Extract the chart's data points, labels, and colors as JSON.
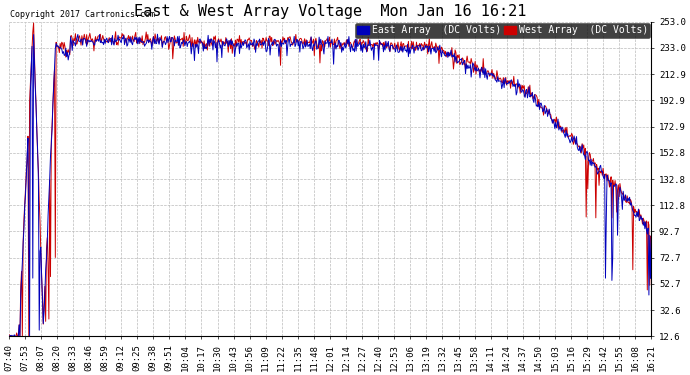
{
  "title": "East & West Array Voltage  Mon Jan 16 16:21",
  "copyright": "Copyright 2017 Cartronics.com",
  "legend_east": "East Array  (DC Volts)",
  "legend_west": "West Array  (DC Volts)",
  "east_color": "#0000bb",
  "west_color": "#cc0000",
  "background_color": "#ffffff",
  "plot_bg_color": "#ffffff",
  "grid_color": "#bbbbbb",
  "ylim_min": 12.6,
  "ylim_max": 253.0,
  "yticks": [
    12.6,
    32.6,
    52.7,
    72.7,
    92.7,
    112.8,
    132.8,
    152.8,
    172.9,
    192.9,
    212.9,
    233.0,
    253.0
  ],
  "xtick_labels": [
    "07:40",
    "07:53",
    "08:07",
    "08:20",
    "08:33",
    "08:46",
    "08:59",
    "09:12",
    "09:25",
    "09:38",
    "09:51",
    "10:04",
    "10:17",
    "10:30",
    "10:43",
    "10:56",
    "11:09",
    "11:22",
    "11:35",
    "11:48",
    "12:01",
    "12:14",
    "12:27",
    "12:40",
    "12:53",
    "13:06",
    "13:19",
    "13:32",
    "13:45",
    "13:58",
    "14:11",
    "14:24",
    "14:37",
    "14:50",
    "15:03",
    "15:16",
    "15:29",
    "15:42",
    "15:55",
    "16:08",
    "16:21"
  ],
  "title_fontsize": 11,
  "tick_fontsize": 6.5,
  "copyright_fontsize": 6,
  "legend_fontsize": 7,
  "linewidth": 0.7
}
